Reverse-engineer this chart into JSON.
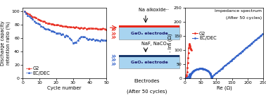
{
  "left_plot": {
    "xlabel": "Cycle number",
    "ylabel": "Discharge capacity\nretention ratio (%)",
    "xlim": [
      0,
      50
    ],
    "ylim": [
      0,
      105
    ],
    "yticks": [
      0,
      20,
      40,
      60,
      80,
      100
    ],
    "xticks": [
      0,
      10,
      20,
      30,
      40,
      50
    ],
    "g2_color": "#e8291c",
    "ecdec_color": "#3060c8",
    "g2_label": "G2",
    "ecdec_label": "EC/DEC"
  },
  "middle": {
    "top_label": "Na alkoxide··",
    "bottom_label": "NaF, NaCO₃··",
    "electrode_label": "GeOₓ electrode",
    "footer1": "Electrodes",
    "footer2": "(After 50 cycles)",
    "top_bar_color": "#e8291c",
    "bottom_bar_color": "#1a3a6e",
    "electrode_bg": "#a8d4f0",
    "electrode_text_color": "#1a1a6e"
  },
  "right_plot": {
    "title_line1": "Impedance spectrum",
    "title_line2": "(After 50 cycles)",
    "xlabel": "Re (Ω)",
    "ylabel": "- Im (Ω)",
    "xlim": [
      0,
      250
    ],
    "ylim": [
      0,
      250
    ],
    "yticks": [
      0,
      50,
      100,
      150,
      200,
      250
    ],
    "xticks": [
      0,
      50,
      100,
      150,
      200,
      250
    ],
    "g2_color": "#e8291c",
    "ecdec_color": "#3060c8",
    "g2_label": "G2",
    "ecdec_label": "EC/DEC"
  },
  "background_color": "#ffffff"
}
